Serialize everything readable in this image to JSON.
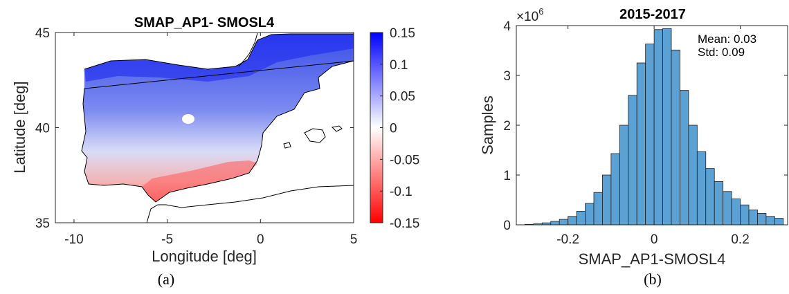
{
  "panel_a_label": "(a)",
  "panel_b_label": "(b)",
  "chart_data": [
    {
      "type": "heatmap",
      "title": "SMAP_AP1- SMOSL4",
      "xlabel": "Longitude [deg]",
      "ylabel": "Latitude [deg]",
      "xlim": [
        -11,
        5
      ],
      "ylim": [
        35,
        45
      ],
      "xticks": [
        -10,
        -5,
        0,
        5
      ],
      "yticks": [
        35,
        40,
        45
      ],
      "colorbar": {
        "range": [
          -0.15,
          0.15
        ],
        "ticks": [
          "0.15",
          "0.1",
          "0.05",
          "0",
          "-0.05",
          "-0.1",
          "-0.15"
        ],
        "colors": {
          "high": "#0000ff",
          "mid": "#ffffff",
          "low": "#ff0000"
        }
      }
    },
    {
      "type": "bar",
      "title": "2015-2017",
      "xlabel": "SMAP_AP1-SMOSL4",
      "ylabel": "Samples",
      "y_multiplier_label": "×10",
      "y_multiplier_exponent": "6",
      "xlim": [
        -0.32,
        0.31
      ],
      "ylim": [
        0,
        4
      ],
      "xticks": [
        -0.2,
        0,
        0.2
      ],
      "yticks": [
        0,
        1,
        2,
        3,
        4
      ],
      "bar_color": "#5ba1d4",
      "bin_width": 0.02,
      "bin_centers": [
        -0.29,
        -0.27,
        -0.25,
        -0.23,
        -0.21,
        -0.19,
        -0.17,
        -0.15,
        -0.13,
        -0.11,
        -0.09,
        -0.07,
        -0.05,
        -0.03,
        -0.01,
        0.01,
        0.03,
        0.05,
        0.07,
        0.09,
        0.11,
        0.13,
        0.15,
        0.17,
        0.19,
        0.21,
        0.23,
        0.25,
        0.27,
        0.29
      ],
      "values": [
        0.01,
        0.02,
        0.04,
        0.07,
        0.11,
        0.17,
        0.27,
        0.43,
        0.65,
        1.0,
        1.43,
        2.0,
        2.6,
        3.25,
        3.63,
        3.92,
        3.94,
        3.51,
        2.7,
        2.0,
        1.47,
        1.13,
        0.87,
        0.67,
        0.52,
        0.4,
        0.3,
        0.23,
        0.17,
        0.13
      ],
      "annotations": [
        "Mean: 0.03",
        "Std: 0.09"
      ]
    }
  ]
}
